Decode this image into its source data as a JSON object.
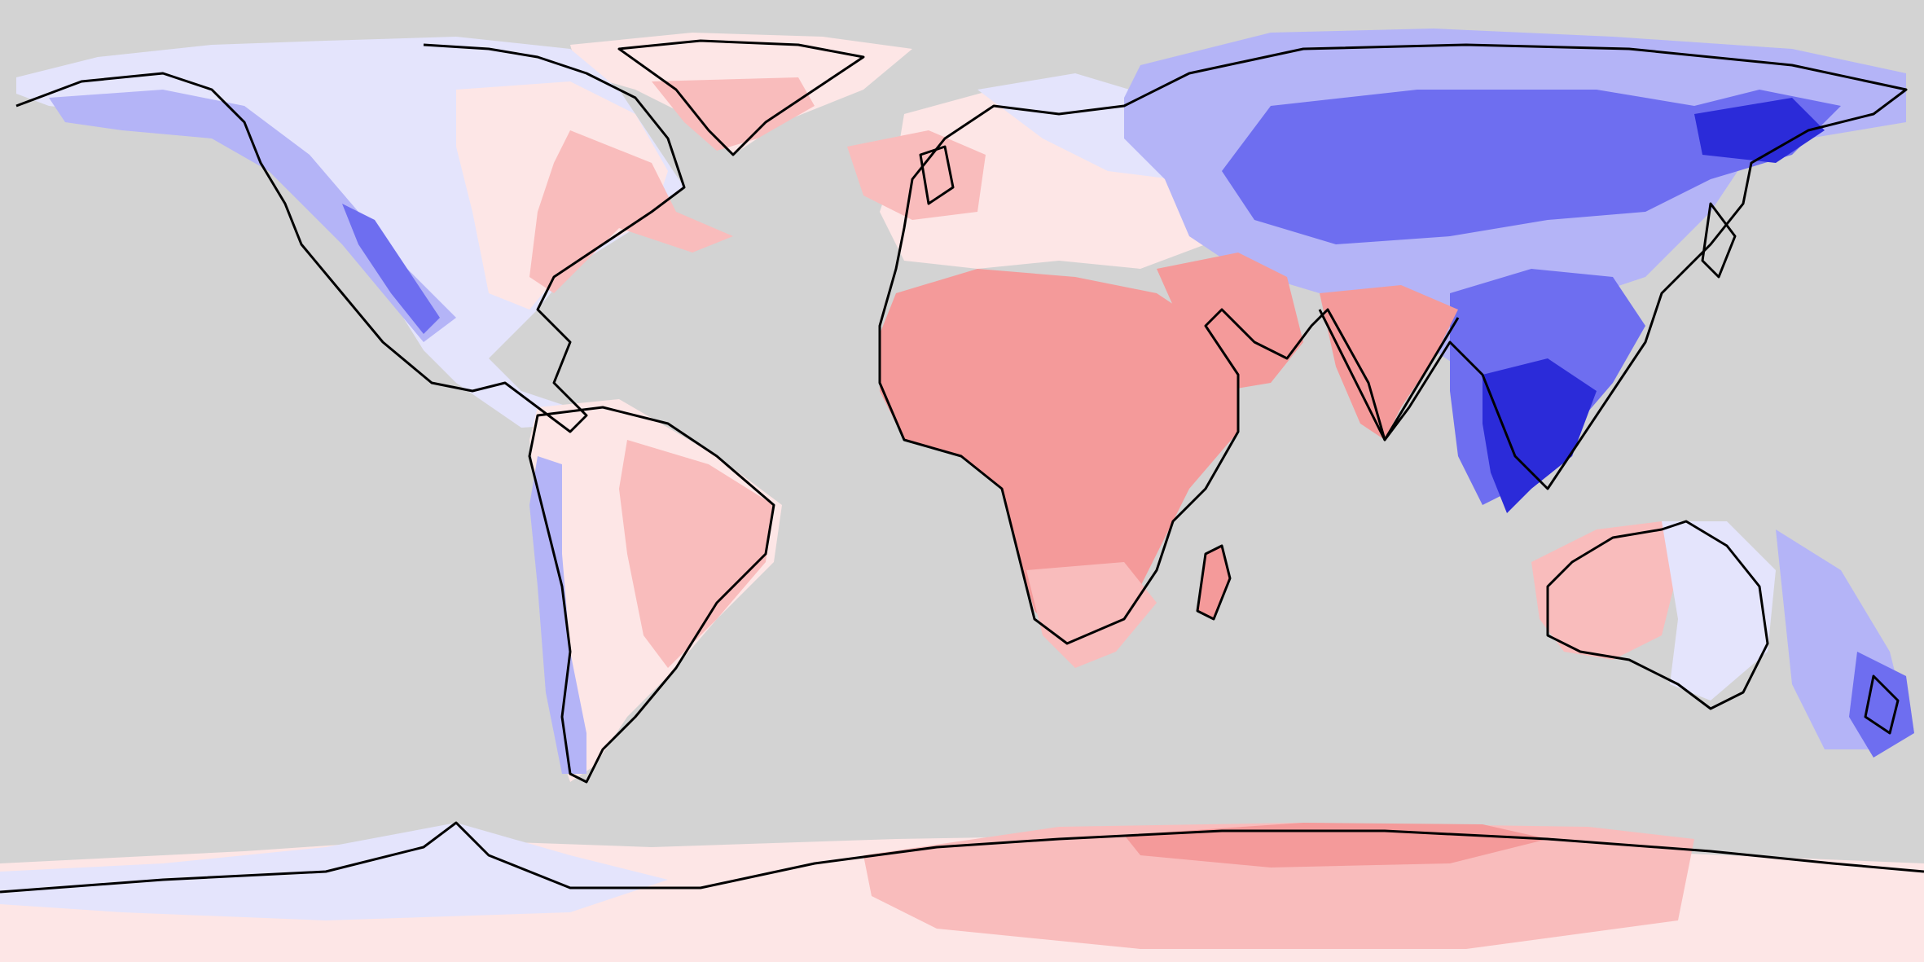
{
  "map": {
    "projection": "equirectangular",
    "extent": {
      "lon": [
        -180,
        180
      ],
      "lat": [
        -90,
        90
      ]
    },
    "ocean_color": "#d3d3d3",
    "coastline_color": "#000000",
    "legend": null,
    "title": null
  },
  "palette": {
    "diverging": "blue-white-red",
    "strong_blue": "#2b2bd9",
    "mid_blue": "#6e6ef0",
    "light_blue": "#b4b4f7",
    "pale_blue": "#e4e4fc",
    "pale_red": "#fde6e6",
    "light_red": "#f9bcbc",
    "mid_red": "#f49a9a"
  },
  "regions": [
    {
      "name": "africa",
      "sign": "positive",
      "level": "moderate"
    },
    {
      "name": "arabia",
      "sign": "positive",
      "level": "moderate"
    },
    {
      "name": "india",
      "sign": "positive",
      "level": "moderate"
    },
    {
      "name": "greenland",
      "sign": "positive",
      "level": "weak"
    },
    {
      "name": "eastern-south-america",
      "sign": "positive",
      "level": "weak"
    },
    {
      "name": "australia",
      "sign": "positive",
      "level": "weak"
    },
    {
      "name": "east-antarctica",
      "sign": "positive",
      "level": "moderate"
    },
    {
      "name": "southeast-asia",
      "sign": "negative",
      "level": "strong"
    },
    {
      "name": "siberia",
      "sign": "negative",
      "level": "moderate"
    },
    {
      "name": "western-north-america",
      "sign": "negative",
      "level": "moderate"
    },
    {
      "name": "andes",
      "sign": "negative",
      "level": "weak"
    },
    {
      "name": "west-antarctica",
      "sign": "negative",
      "level": "weak"
    }
  ]
}
